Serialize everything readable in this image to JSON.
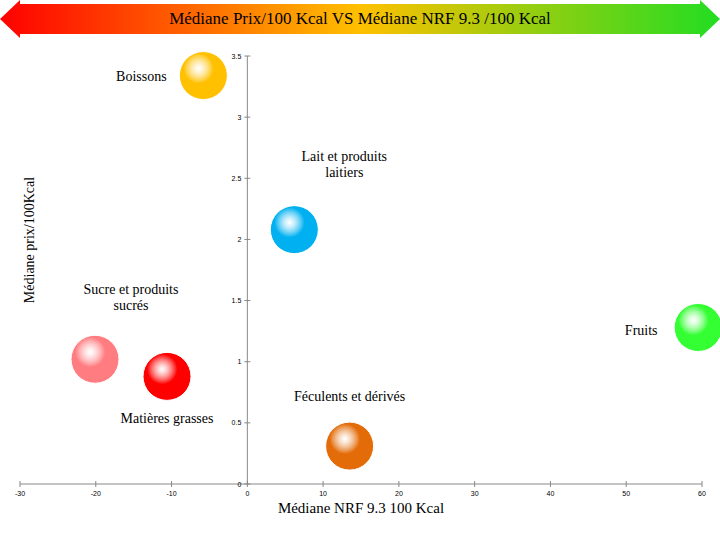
{
  "chart_data": {
    "type": "scatter",
    "title": "Médiane Prix/100 Kcal VS Médiane NRF 9.3 /100 Kcal",
    "x_label": "Médiane NRF 9.3 100 Kcal",
    "y_label": "Médiane prix/100Kcal",
    "xlim": [
      -30,
      60
    ],
    "xticks": [
      -30,
      -20,
      -10,
      0,
      10,
      20,
      30,
      40,
      50,
      60
    ],
    "ylim": [
      0,
      3.5
    ],
    "yticks": [
      0,
      0.5,
      1,
      1.5,
      2,
      2.5,
      3,
      3.5
    ],
    "marker": "circle",
    "grid": false,
    "series": [
      {
        "name": "Boissons",
        "color": "#FFC000",
        "x": [
          -5.8
        ],
        "values": [
          3.34
        ]
      },
      {
        "name": "Lait et produits\nlaitiers",
        "color": "#00B0F0",
        "x": [
          6.2
        ],
        "values": [
          2.08
        ]
      },
      {
        "name": "Sucre et produits\nsucrés",
        "color": "#FF7C80",
        "x": [
          -20.1
        ],
        "values": [
          1.02
        ]
      },
      {
        "name": "Matières grasses",
        "color": "#FF0000",
        "x": [
          -10.6
        ],
        "values": [
          0.88
        ]
      },
      {
        "name": "Fruits",
        "color": "#33FF33",
        "x": [
          59.5
        ],
        "values": [
          1.28
        ]
      },
      {
        "name": "Féculents et dérivés",
        "color": "#E36C09",
        "x": [
          13.5
        ],
        "values": [
          0.31
        ]
      }
    ]
  }
}
